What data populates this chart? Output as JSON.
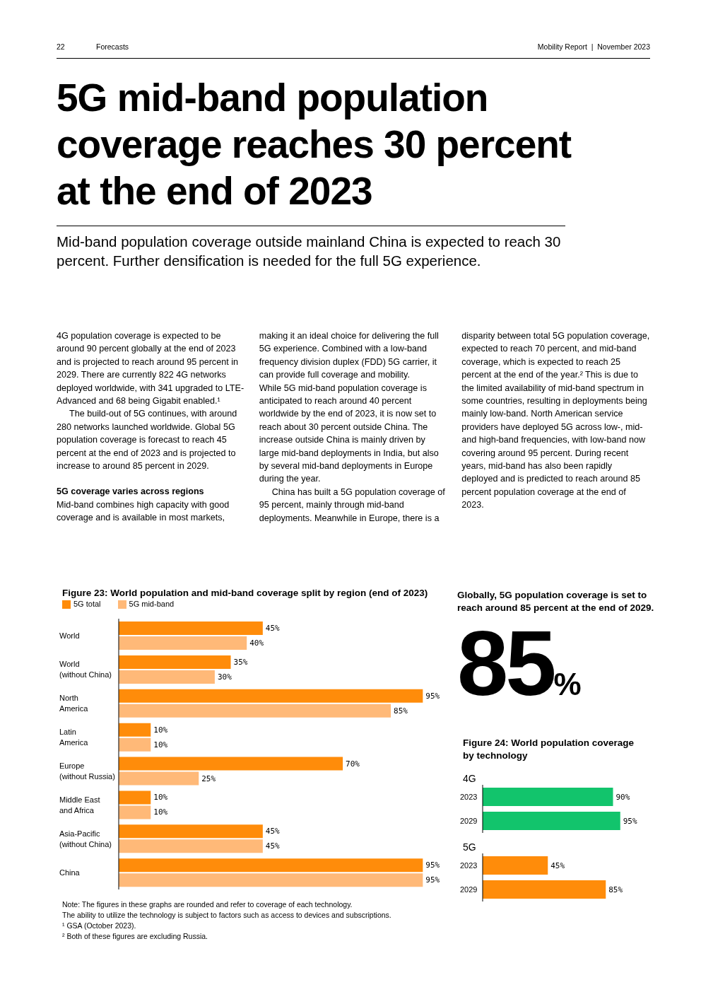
{
  "chart_data": [
    {
      "type": "other",
      "title": "5G mid-band population coverage reaches 30 percent at the end of 2023",
      "subtitle": "Mid-band population coverage outside mainland China is expected to reach 30 percent. Further densification is needed for the full 5G experience.",
      "annotations": [
        "22",
        "Forecasts",
        "Mobility Report  |  November 2023",
        "4G population coverage is expected to be around 90 percent globally at the end of 2023 and is projected to reach around 95 percent in 2029. There are currently 822 4G networks deployed worldwide, with 341 upgraded to LTE-Advanced and 68 being Gigabit enabled.¹",
        "The build-out of 5G continues, with around 280 networks launched worldwide. Global 5G population coverage is forecast to reach 45 percent at the end of 2023 and is projected to increase to around 85 percent in 2029.",
        "5G coverage varies across regions",
        "Mid-band combines high capacity with good coverage and is available in most markets, making it an ideal choice for delivering the full 5G experience. Combined with a low-band frequency division duplex (FDD) 5G carrier, it can provide full coverage and mobility.",
        "While 5G mid-band population coverage is anticipated to reach around 40 percent worldwide by the end of 2023, it is now set to reach about 30 percent outside China. The increase outside China is mainly driven by large mid-band deployments in India, but also by several mid-band deployments in Europe during the year.",
        "China has built a 5G population coverage of 95 percent, mainly through mid-band deployments. Meanwhile in Europe, there is a disparity between total 5G population coverage, expected to reach 70 percent, and mid-band coverage, which is expected to reach 25 percent at the end of the year.² This is due to the limited availability of mid-band spectrum in some countries, resulting in deployments being mainly low-band. North American service providers have deployed 5G across low-, mid- and high-band frequencies, with low-band now covering around 95 percent. During recent years, mid-band has also been rapidly deployed and is predicted to reach around 85 percent population coverage at the end of 2023."
      ]
    },
    {
      "type": "bar",
      "orientation": "horizontal",
      "title": "Figure 23: World population and mid-band coverage split by region (end of 2023)",
      "categories": [
        "World",
        "World\n(without China)",
        "North\nAmerica",
        "Latin\nAmerica",
        "Europe\n(without Russia)",
        "Middle East\nand Africa",
        "Asia-Pacific\n(without China)",
        "China"
      ],
      "series": [
        {
          "name": "5G total",
          "color": "#ff8c0a",
          "values": [
            45,
            35,
            95,
            10,
            70,
            10,
            45,
            95
          ],
          "value_labels": [
            "45%",
            "35%",
            "95%",
            "10%",
            "70%",
            "10%",
            "45%",
            "95%"
          ]
        },
        {
          "name": "5G mid-band",
          "color": "#ffb978",
          "values": [
            40,
            30,
            85,
            10,
            25,
            10,
            45,
            95
          ],
          "value_labels": [
            "40%",
            "30%",
            "85%",
            "10%",
            "25%",
            "10%",
            "45%",
            "95%"
          ]
        }
      ],
      "tick_labels": "y",
      "legend": "top left",
      "annotations": [
        "Note: The figures in these graphs are rounded and refer to coverage of each technology.",
        "The ability to utilize the technology is subject to factors such as access to devices and subscriptions.",
        "¹ GSA (October 2023).",
        "² Both of these figures are excluding Russia."
      ]
    },
    {
      "type": "other",
      "title": "Globally, 5G population coverage is set to reach around 85 percent at the end of 2029.",
      "annotations": [
        "85%"
      ]
    },
    {
      "type": "bar",
      "orientation": "horizontal",
      "title": "Figure 24: World population coverage by technology",
      "subtitle": "4G",
      "categories": [
        "2023",
        "2029"
      ],
      "series": [
        {
          "color": "#12c46c",
          "values": [
            90,
            95
          ],
          "value_labels": [
            "90%",
            "95%"
          ]
        }
      ],
      "tick_labels": "y"
    },
    {
      "type": "bar",
      "orientation": "horizontal",
      "subtitle": "5G",
      "categories": [
        "2023",
        "2029"
      ],
      "series": [
        {
          "color": "#ff8c0a",
          "values": [
            45,
            85
          ],
          "value_labels": [
            "45%",
            "85%"
          ]
        }
      ],
      "tick_labels": "y"
    }
  ]
}
